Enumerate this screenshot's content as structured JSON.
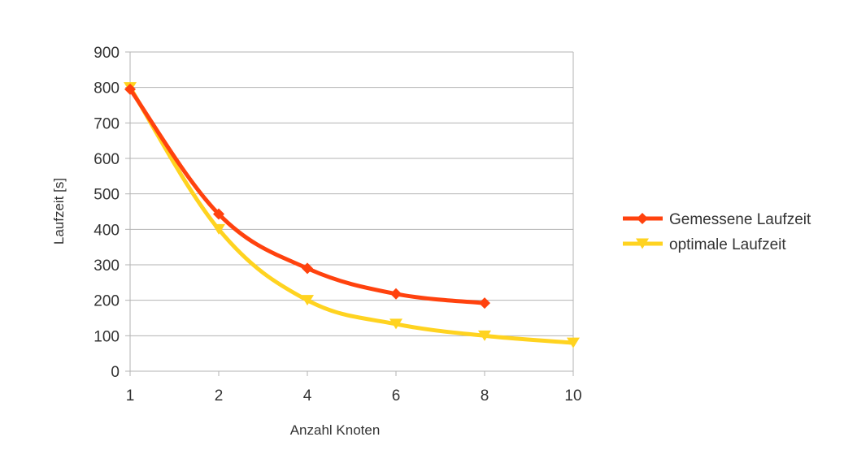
{
  "chart_data": {
    "type": "line",
    "title": "",
    "xlabel": "Anzahl Knoten",
    "ylabel": "Laufzeit [s]",
    "categories": [
      "1",
      "2",
      "4",
      "6",
      "8",
      "10"
    ],
    "ylim": [
      0,
      900
    ],
    "y_ticks": [
      "0",
      "100",
      "200",
      "300",
      "400",
      "500",
      "600",
      "700",
      "800",
      "900"
    ],
    "grid": "horizontal",
    "legend_position": "right",
    "series": [
      {
        "name": "Gemessene Laufzeit",
        "color": "#ff420e",
        "marker": "diamond",
        "values": [
          795,
          443,
          290,
          218,
          192,
          null
        ]
      },
      {
        "name": "optimale Laufzeit",
        "color": "#ffd320",
        "marker": "triangle-down",
        "values": [
          800,
          400,
          200,
          133,
          100,
          80
        ]
      }
    ]
  }
}
